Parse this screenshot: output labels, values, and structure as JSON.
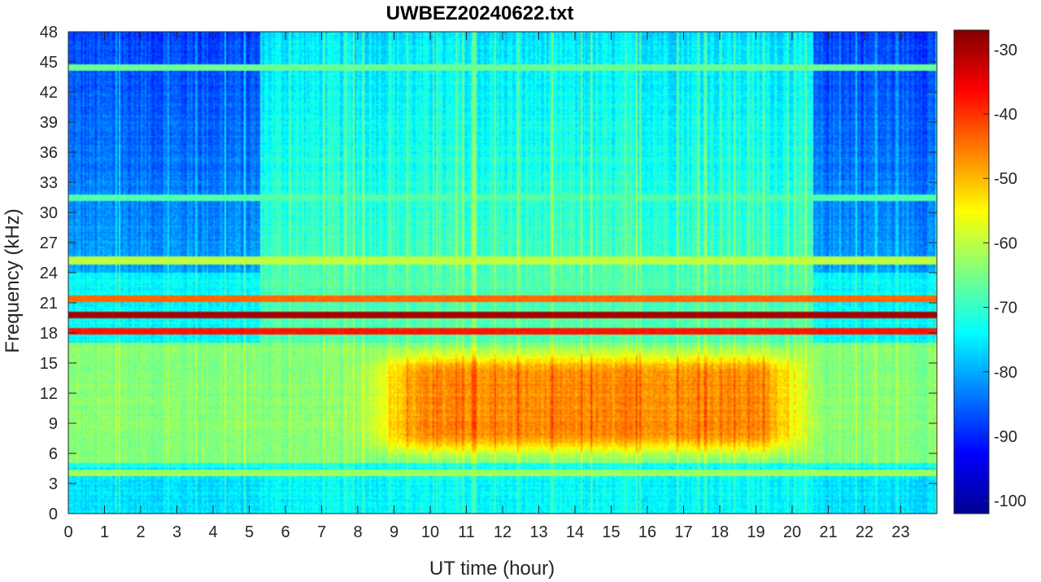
{
  "chart_data": {
    "type": "heatmap",
    "title": "UWBEZ20240622.txt",
    "xlabel": "UT time (hour)",
    "ylabel": "Frequency (kHz)",
    "xlim": [
      0,
      24
    ],
    "ylim": [
      0,
      48
    ],
    "x_ticks": [
      "0",
      "1",
      "2",
      "3",
      "4",
      "5",
      "6",
      "7",
      "8",
      "9",
      "10",
      "11",
      "12",
      "13",
      "14",
      "15",
      "16",
      "17",
      "18",
      "19",
      "20",
      "21",
      "22",
      "23"
    ],
    "y_ticks": [
      "0",
      "3",
      "6",
      "9",
      "12",
      "15",
      "18",
      "21",
      "24",
      "27",
      "30",
      "33",
      "36",
      "39",
      "42",
      "45",
      "48"
    ],
    "colorbar": {
      "colormap": "jet",
      "range": [
        -102,
        -27
      ],
      "ticks": [
        "-100",
        "-90",
        "-80",
        "-70",
        "-60",
        "-50",
        "-40",
        "-30"
      ]
    },
    "constant_lines_khz": [
      {
        "frequency": 19.8,
        "level_db": -30
      },
      {
        "frequency": 18.2,
        "level_db": -38
      },
      {
        "frequency": 21.4,
        "level_db": -44
      },
      {
        "frequency": 44.4,
        "level_db": -66
      },
      {
        "frequency": 25.2,
        "level_db": -60
      },
      {
        "frequency": 31.5,
        "level_db": -68
      },
      {
        "frequency": 4.0,
        "level_db": -62
      }
    ],
    "daytime_enhancement": {
      "frequency_range_khz": [
        5,
        17
      ],
      "time_range_hour": [
        9.5,
        19.5
      ],
      "peak_level_db": -47
    },
    "quiet_periods_hour": [
      [
        0,
        5.3
      ],
      [
        20.6,
        24
      ]
    ]
  }
}
